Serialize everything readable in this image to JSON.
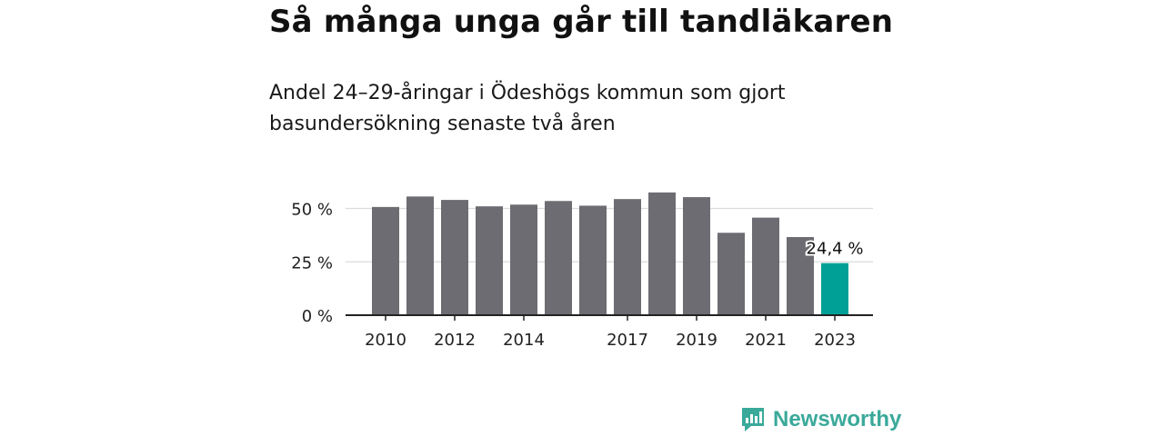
{
  "header": {
    "title": "Så många unga går till tandläkaren",
    "subtitle": "Andel 24–29-åringar i Ödeshögs kommun som gjort basundersökning senaste två åren"
  },
  "brand": {
    "name": "Newsworthy",
    "color": "#3aa99a",
    "icon": "newsworthy-logo-icon"
  },
  "chart_data": {
    "type": "bar",
    "title": "Så många unga går till tandläkaren",
    "subtitle": "Andel 24–29-åringar i Ödeshögs kommun som gjort basundersökning senaste två åren",
    "xlabel": "",
    "ylabel": "",
    "categories": [
      "2010",
      "2011",
      "2012",
      "2013",
      "2014",
      "2015",
      "2016",
      "2017",
      "2018",
      "2019",
      "2020",
      "2021",
      "2022",
      "2023"
    ],
    "values": [
      50.7,
      55.6,
      54.0,
      51.0,
      51.8,
      53.5,
      51.3,
      54.4,
      57.5,
      55.3,
      38.6,
      45.7,
      36.6,
      24.4
    ],
    "ylim": [
      0,
      60
    ],
    "yticks": [
      0,
      25,
      50
    ],
    "ytick_labels": [
      "0 %",
      "25 %",
      "50 %"
    ],
    "xtick_labels": [
      "2010",
      "",
      "2012",
      "",
      "2014",
      "",
      "",
      "2017",
      "",
      "2019",
      "",
      "2021",
      "",
      "2023"
    ],
    "highlight_label": "24,4 %",
    "highlight_index": 13,
    "bar_color": "#6d6c72",
    "highlight_color": "#00a096",
    "grid": true,
    "legend": "none"
  }
}
